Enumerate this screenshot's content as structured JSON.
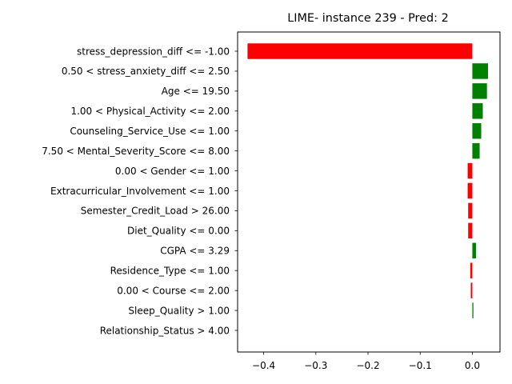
{
  "chart_data": {
    "type": "bar",
    "orientation": "horizontal",
    "title": "LIME- instance 239 - Pred: 2",
    "xlabel": "",
    "ylabel": "",
    "xlim": [
      -0.45,
      0.053
    ],
    "xticks": [
      -0.4,
      -0.3,
      -0.2,
      -0.1,
      0.0
    ],
    "xtick_labels": [
      "−0.4",
      "−0.3",
      "−0.2",
      "−0.1",
      "0.0"
    ],
    "grid": false,
    "categories": [
      "stress_depression_diff <= -1.00",
      "0.50 < stress_anxiety_diff <= 2.50",
      "Age <= 19.50",
      "1.00 < Physical_Activity <= 2.00",
      "Counseling_Service_Use <= 1.00",
      "7.50 < Mental_Severity_Score <= 8.00",
      "0.00 < Gender <= 1.00",
      "Extracurricular_Involvement <= 1.00",
      "Semester_Credit_Load > 26.00",
      "Diet_Quality <= 0.00",
      "CGPA <= 3.29",
      "Residence_Type <= 1.00",
      "0.00 < Course <= 2.00",
      "Sleep_Quality > 1.00",
      "Relationship_Status > 4.00"
    ],
    "values": [
      -0.431,
      0.03,
      0.028,
      0.02,
      0.017,
      0.014,
      -0.009,
      -0.009,
      -0.008,
      -0.008,
      0.007,
      -0.004,
      -0.003,
      0.002,
      0.0
    ],
    "colors": {
      "positive": "#008000",
      "negative": "#ff0000"
    }
  }
}
